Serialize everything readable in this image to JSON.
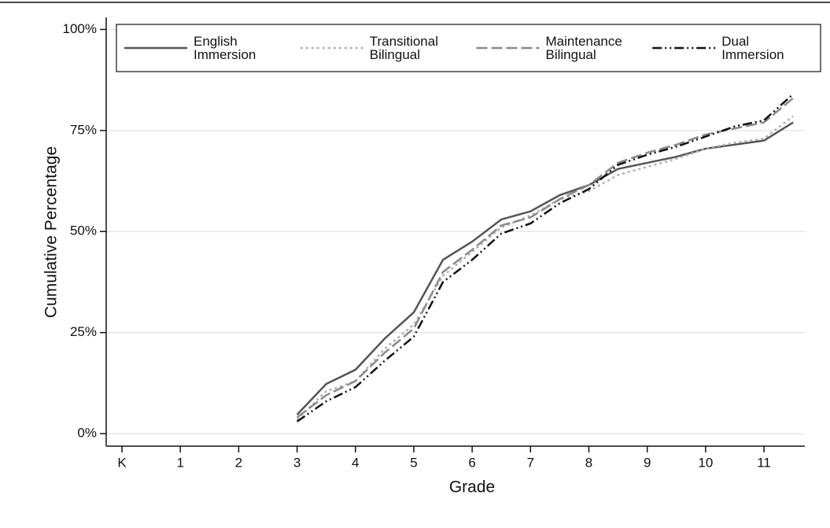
{
  "chart_data": {
    "type": "line",
    "x_label": "Grade",
    "y_label": "Cumulative Percentage",
    "x": [
      3,
      3.5,
      4,
      4.5,
      5,
      5.5,
      6,
      6.5,
      7,
      7.5,
      8,
      8.5,
      9,
      9.5,
      10,
      10.5,
      11,
      11.5
    ],
    "xlim": [
      -0.27,
      11.7
    ],
    "xticks": [
      {
        "value": 0,
        "label": "K"
      },
      1,
      2,
      3,
      4,
      5,
      6,
      7,
      8,
      9,
      10,
      11
    ],
    "ylim": [
      -3.1,
      103
    ],
    "yticks": [
      {
        "value": 0,
        "label": "0%"
      },
      {
        "value": 25,
        "label": "25%"
      },
      {
        "value": 50,
        "label": "50%"
      },
      {
        "value": 75,
        "label": "75%"
      },
      {
        "value": 100,
        "label": "100%"
      }
    ],
    "grid": true,
    "legend": "top",
    "series": [
      {
        "name": "English Immersion",
        "color": "#555555",
        "dash": "solid",
        "values": [
          4.7,
          12.3,
          15.8,
          23.5,
          30,
          43,
          47.5,
          53,
          55,
          59,
          61.5,
          65.5,
          67,
          68.5,
          70.5,
          71.5,
          72.5,
          77
        ]
      },
      {
        "name": "Transitional Bilingual",
        "color": "#b0b0b0",
        "dash": "dotted",
        "values": [
          3.5,
          10.5,
          13,
          21,
          27,
          39,
          45,
          51,
          54,
          58,
          60,
          64,
          66,
          68,
          70.5,
          72,
          73,
          78.5
        ]
      },
      {
        "name": "Maintenance Bilingual",
        "color": "#8a8a8a",
        "dash": "dashed",
        "values": [
          4,
          9.5,
          13,
          20,
          26,
          40,
          45.5,
          51.5,
          53.5,
          58,
          61.5,
          67,
          69.5,
          71.5,
          74,
          75.5,
          77,
          83
        ]
      },
      {
        "name": "Dual Immersion",
        "color": "#111111",
        "dash": "dashdot",
        "values": [
          3,
          8,
          11.5,
          18,
          24,
          37.5,
          43,
          49.5,
          52,
          57,
          60.5,
          66.5,
          69,
          71,
          73.5,
          76,
          77.5,
          84
        ]
      }
    ]
  }
}
